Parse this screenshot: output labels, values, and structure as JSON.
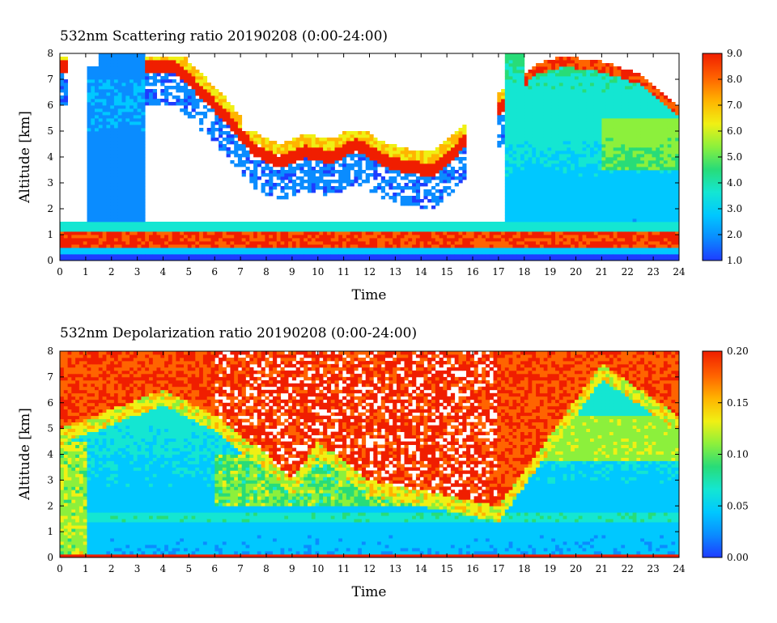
{
  "chart_data": [
    {
      "type": "heatmap",
      "title": "532nm Scattering ratio  20190208 (0:00-24:00)",
      "xlabel": "Time",
      "ylabel": "Altitude [km]",
      "xlim": [
        0,
        24
      ],
      "ylim": [
        0,
        8
      ],
      "x_ticks": [
        "0",
        "1",
        "2",
        "3",
        "4",
        "5",
        "6",
        "7",
        "8",
        "9",
        "10",
        "11",
        "12",
        "13",
        "14",
        "15",
        "16",
        "17",
        "18",
        "19",
        "20",
        "21",
        "22",
        "23",
        "24"
      ],
      "y_ticks": [
        "0",
        "1",
        "2",
        "3",
        "4",
        "5",
        "6",
        "7",
        "8"
      ],
      "colorbar": {
        "range": [
          1.0,
          9.0
        ],
        "ticks": [
          "1.0",
          "2.0",
          "3.0",
          "4.0",
          "5.0",
          "6.0",
          "7.0",
          "8.0",
          "9.0"
        ]
      },
      "colormap": [
        "#1e3cff",
        "#0a8cff",
        "#00c8ff",
        "#14e6d2",
        "#28dc78",
        "#8cf03c",
        "#f0f014",
        "#ffb400",
        "#ff6400",
        "#f01e00"
      ],
      "features": {
        "boundary_layer_top_km": 1.0,
        "cloud_base_time_series_km": [
          {
            "t": 4.5,
            "z": 7.5
          },
          {
            "t": 5.5,
            "z": 6.5
          },
          {
            "t": 6.5,
            "z": 5.5
          },
          {
            "t": 7.5,
            "z": 4.3
          },
          {
            "t": 8.5,
            "z": 3.8
          },
          {
            "t": 9.5,
            "z": 4.2
          },
          {
            "t": 10.5,
            "z": 4.0
          },
          {
            "t": 11.5,
            "z": 4.5
          },
          {
            "t": 12.5,
            "z": 3.9
          },
          {
            "t": 13.5,
            "z": 3.6
          },
          {
            "t": 14.5,
            "z": 3.5
          },
          {
            "t": 18.5,
            "z": 7.2
          },
          {
            "t": 19.5,
            "z": 7.5
          },
          {
            "t": 21,
            "z": 7.3
          },
          {
            "t": 22.5,
            "z": 6.8
          },
          {
            "t": 24,
            "z": 5.6
          }
        ]
      }
    },
    {
      "type": "heatmap",
      "title": "532nm Depolarization ratio  20190208 (0:00-24:00)",
      "xlabel": "Time",
      "ylabel": "Altitude [km]",
      "xlim": [
        0,
        24
      ],
      "ylim": [
        0,
        8
      ],
      "x_ticks": [
        "0",
        "1",
        "2",
        "3",
        "4",
        "5",
        "6",
        "7",
        "8",
        "9",
        "10",
        "11",
        "12",
        "13",
        "14",
        "15",
        "16",
        "17",
        "18",
        "19",
        "20",
        "21",
        "22",
        "23",
        "24"
      ],
      "y_ticks": [
        "0",
        "1",
        "2",
        "3",
        "4",
        "5",
        "6",
        "7",
        "8"
      ],
      "colorbar": {
        "range": [
          0.0,
          0.2
        ],
        "ticks": [
          "0.00",
          "0.05",
          "0.10",
          "0.15",
          "0.20"
        ]
      },
      "colormap": [
        "#1e3cff",
        "#0a8cff",
        "#00c8ff",
        "#14e6d2",
        "#28dc78",
        "#8cf03c",
        "#f0f014",
        "#ffb400",
        "#ff6400",
        "#f01e00"
      ],
      "features": {
        "high_depol_layer_base_km": [
          {
            "t": 0,
            "z": 5.0
          },
          {
            "t": 4,
            "z": 6.5
          },
          {
            "t": 6,
            "z": 5.5
          },
          {
            "t": 8,
            "z": 4.0
          },
          {
            "t": 9,
            "z": 3.0
          },
          {
            "t": 10,
            "z": 4.5
          },
          {
            "t": 12,
            "z": 3.0
          },
          {
            "t": 17,
            "z": 2.0
          },
          {
            "t": 21,
            "z": 7.5
          },
          {
            "t": 24,
            "z": 5.5
          }
        ]
      }
    }
  ]
}
